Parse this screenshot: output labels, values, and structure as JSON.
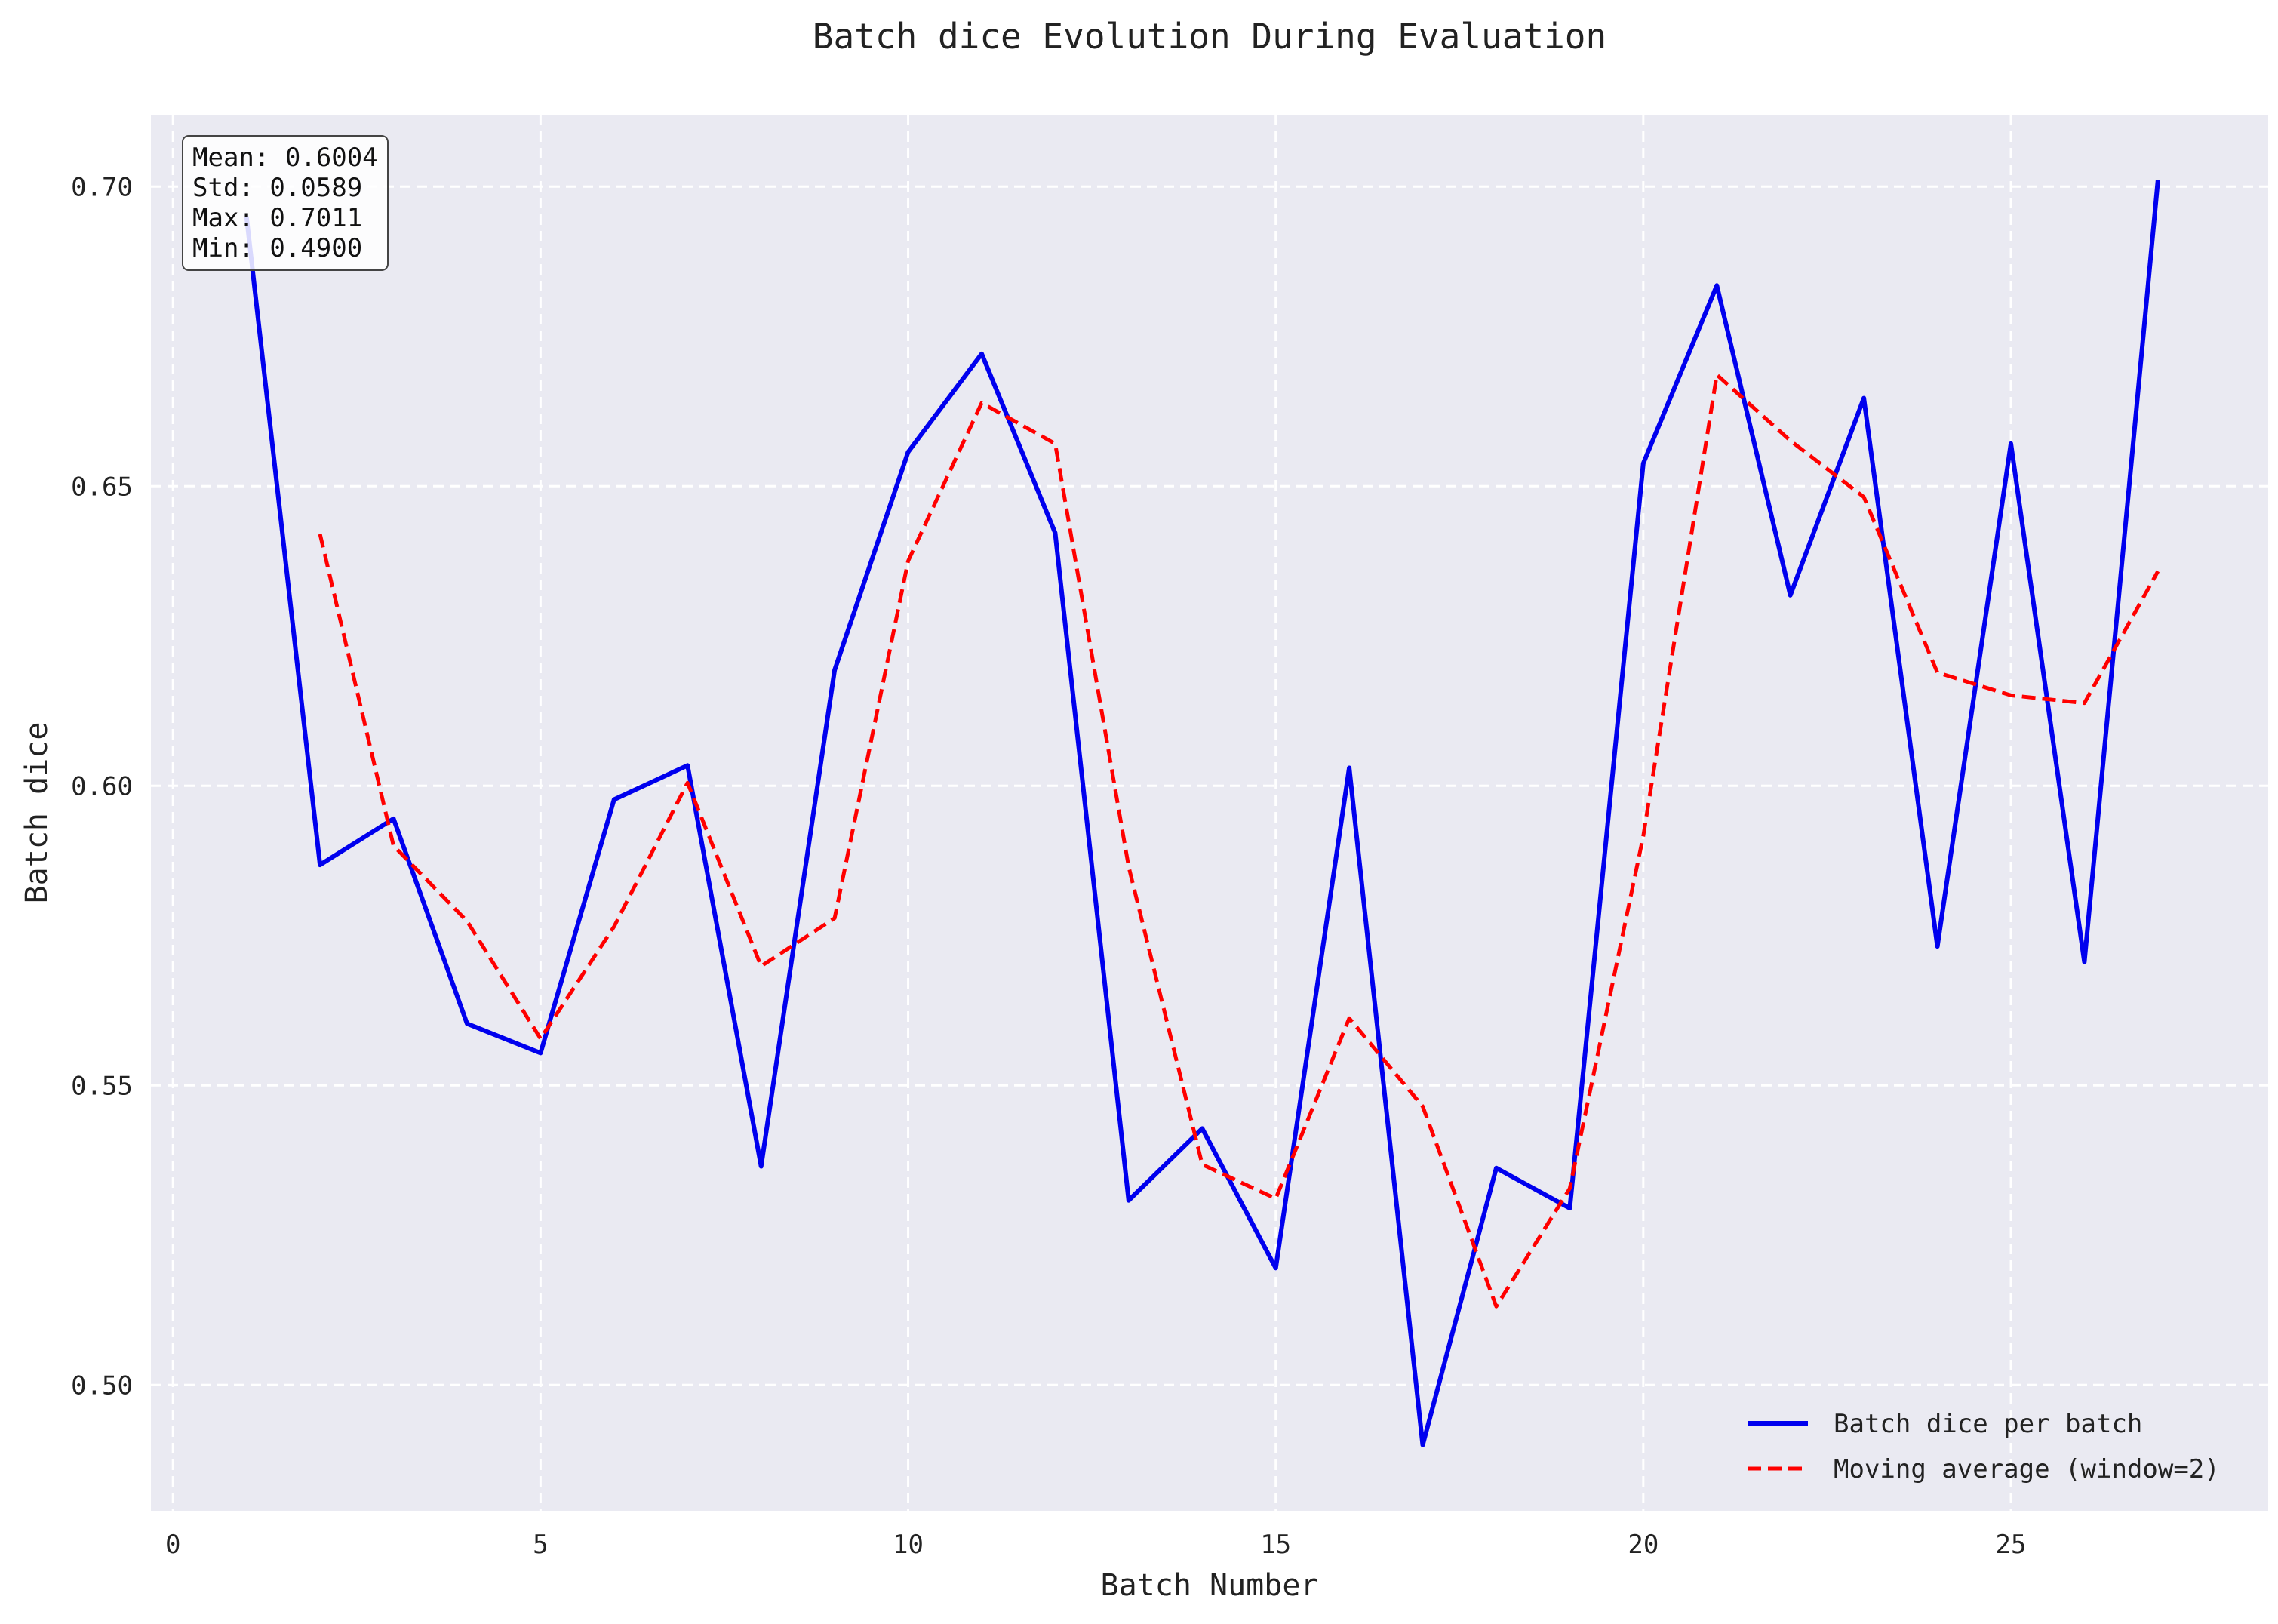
{
  "chart_data": {
    "type": "line",
    "title": "Batch dice Evolution During Evaluation",
    "xlabel": "Batch Number",
    "ylabel": "Batch dice",
    "xlim": [
      -0.3,
      28.5
    ],
    "ylim": [
      0.479,
      0.712
    ],
    "x_ticks": [
      0,
      5,
      10,
      15,
      20,
      25
    ],
    "y_ticks": [
      0.5,
      0.55,
      0.6,
      0.65,
      0.7
    ],
    "x_tick_labels": [
      "0",
      "5",
      "10",
      "15",
      "20",
      "25"
    ],
    "y_tick_labels": [
      "0.50",
      "0.55",
      "0.60",
      "0.65",
      "0.70"
    ],
    "grid": true,
    "legend_position": "lower-right",
    "series": [
      {
        "name": "Batch dice per batch",
        "color": "#0000ee",
        "style": "solid",
        "x": [
          1,
          2,
          3,
          4,
          5,
          6,
          7,
          8,
          9,
          10,
          11,
          12,
          13,
          14,
          15,
          16,
          17,
          18,
          19,
          20,
          21,
          22,
          23,
          24,
          25,
          26,
          27
        ],
        "y": [
          0.695,
          0.5868,
          0.5945,
          0.5603,
          0.5554,
          0.5977,
          0.6034,
          0.5365,
          0.6193,
          0.6557,
          0.6721,
          0.6422,
          0.5308,
          0.5428,
          0.5195,
          0.603,
          0.49,
          0.5362,
          0.5295,
          0.6538,
          0.6835,
          0.6318,
          0.6647,
          0.5732,
          0.6571,
          0.5706,
          0.7011
        ]
      },
      {
        "name": "Moving average (window=2)",
        "color": "#ff0000",
        "style": "dashed",
        "x": [
          2,
          3,
          4,
          5,
          6,
          7,
          8,
          9,
          10,
          11,
          12,
          13,
          14,
          15,
          16,
          17,
          18,
          19,
          20,
          21,
          22,
          23,
          24,
          25,
          26,
          27
        ],
        "y": [
          0.642,
          0.59,
          0.5774,
          0.5578,
          0.5765,
          0.6005,
          0.5699,
          0.5779,
          0.6375,
          0.6639,
          0.6571,
          0.5865,
          0.5368,
          0.5311,
          0.5612,
          0.5465,
          0.5131,
          0.5328,
          0.5916,
          0.6686,
          0.6576,
          0.6482,
          0.6189,
          0.6151,
          0.6138,
          0.6358
        ]
      }
    ],
    "stats_box": {
      "lines": [
        "Mean: 0.6004",
        "Std: 0.0589",
        "Max: 0.7011",
        "Min: 0.4900"
      ],
      "position": "top-left"
    },
    "colors": {
      "plot_background": "#eaeaf2",
      "grid": "#ffffff"
    }
  }
}
